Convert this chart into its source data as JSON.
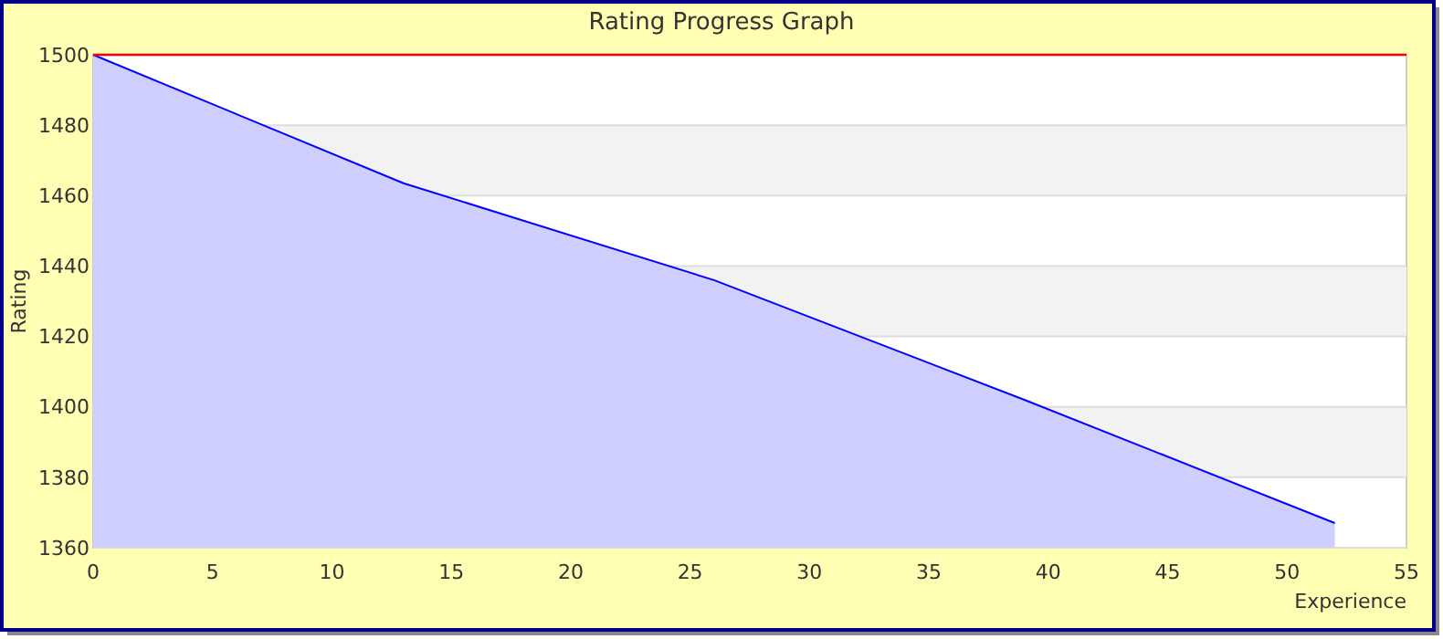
{
  "chart_data": {
    "type": "area",
    "title": "Rating Progress Graph",
    "xlabel": "Experience",
    "ylabel": "Rating",
    "x": [
      0,
      13,
      26,
      39,
      52
    ],
    "series": [
      {
        "color": "#0000ff",
        "values": [
          1500,
          1463.5,
          1436,
          1402,
          1367
        ]
      }
    ],
    "xlim": [
      0,
      55
    ],
    "xticks": [
      0,
      5,
      10,
      15,
      20,
      25,
      30,
      35,
      40,
      45,
      50,
      55
    ],
    "ylim": [
      1360,
      1500
    ],
    "yticks": [
      1360,
      1380,
      1400,
      1420,
      1440,
      1460,
      1480,
      1500
    ],
    "grid": "y",
    "ref_lines": [
      {
        "axis": "y",
        "value": 1500,
        "color": "#ff0000"
      }
    ]
  }
}
